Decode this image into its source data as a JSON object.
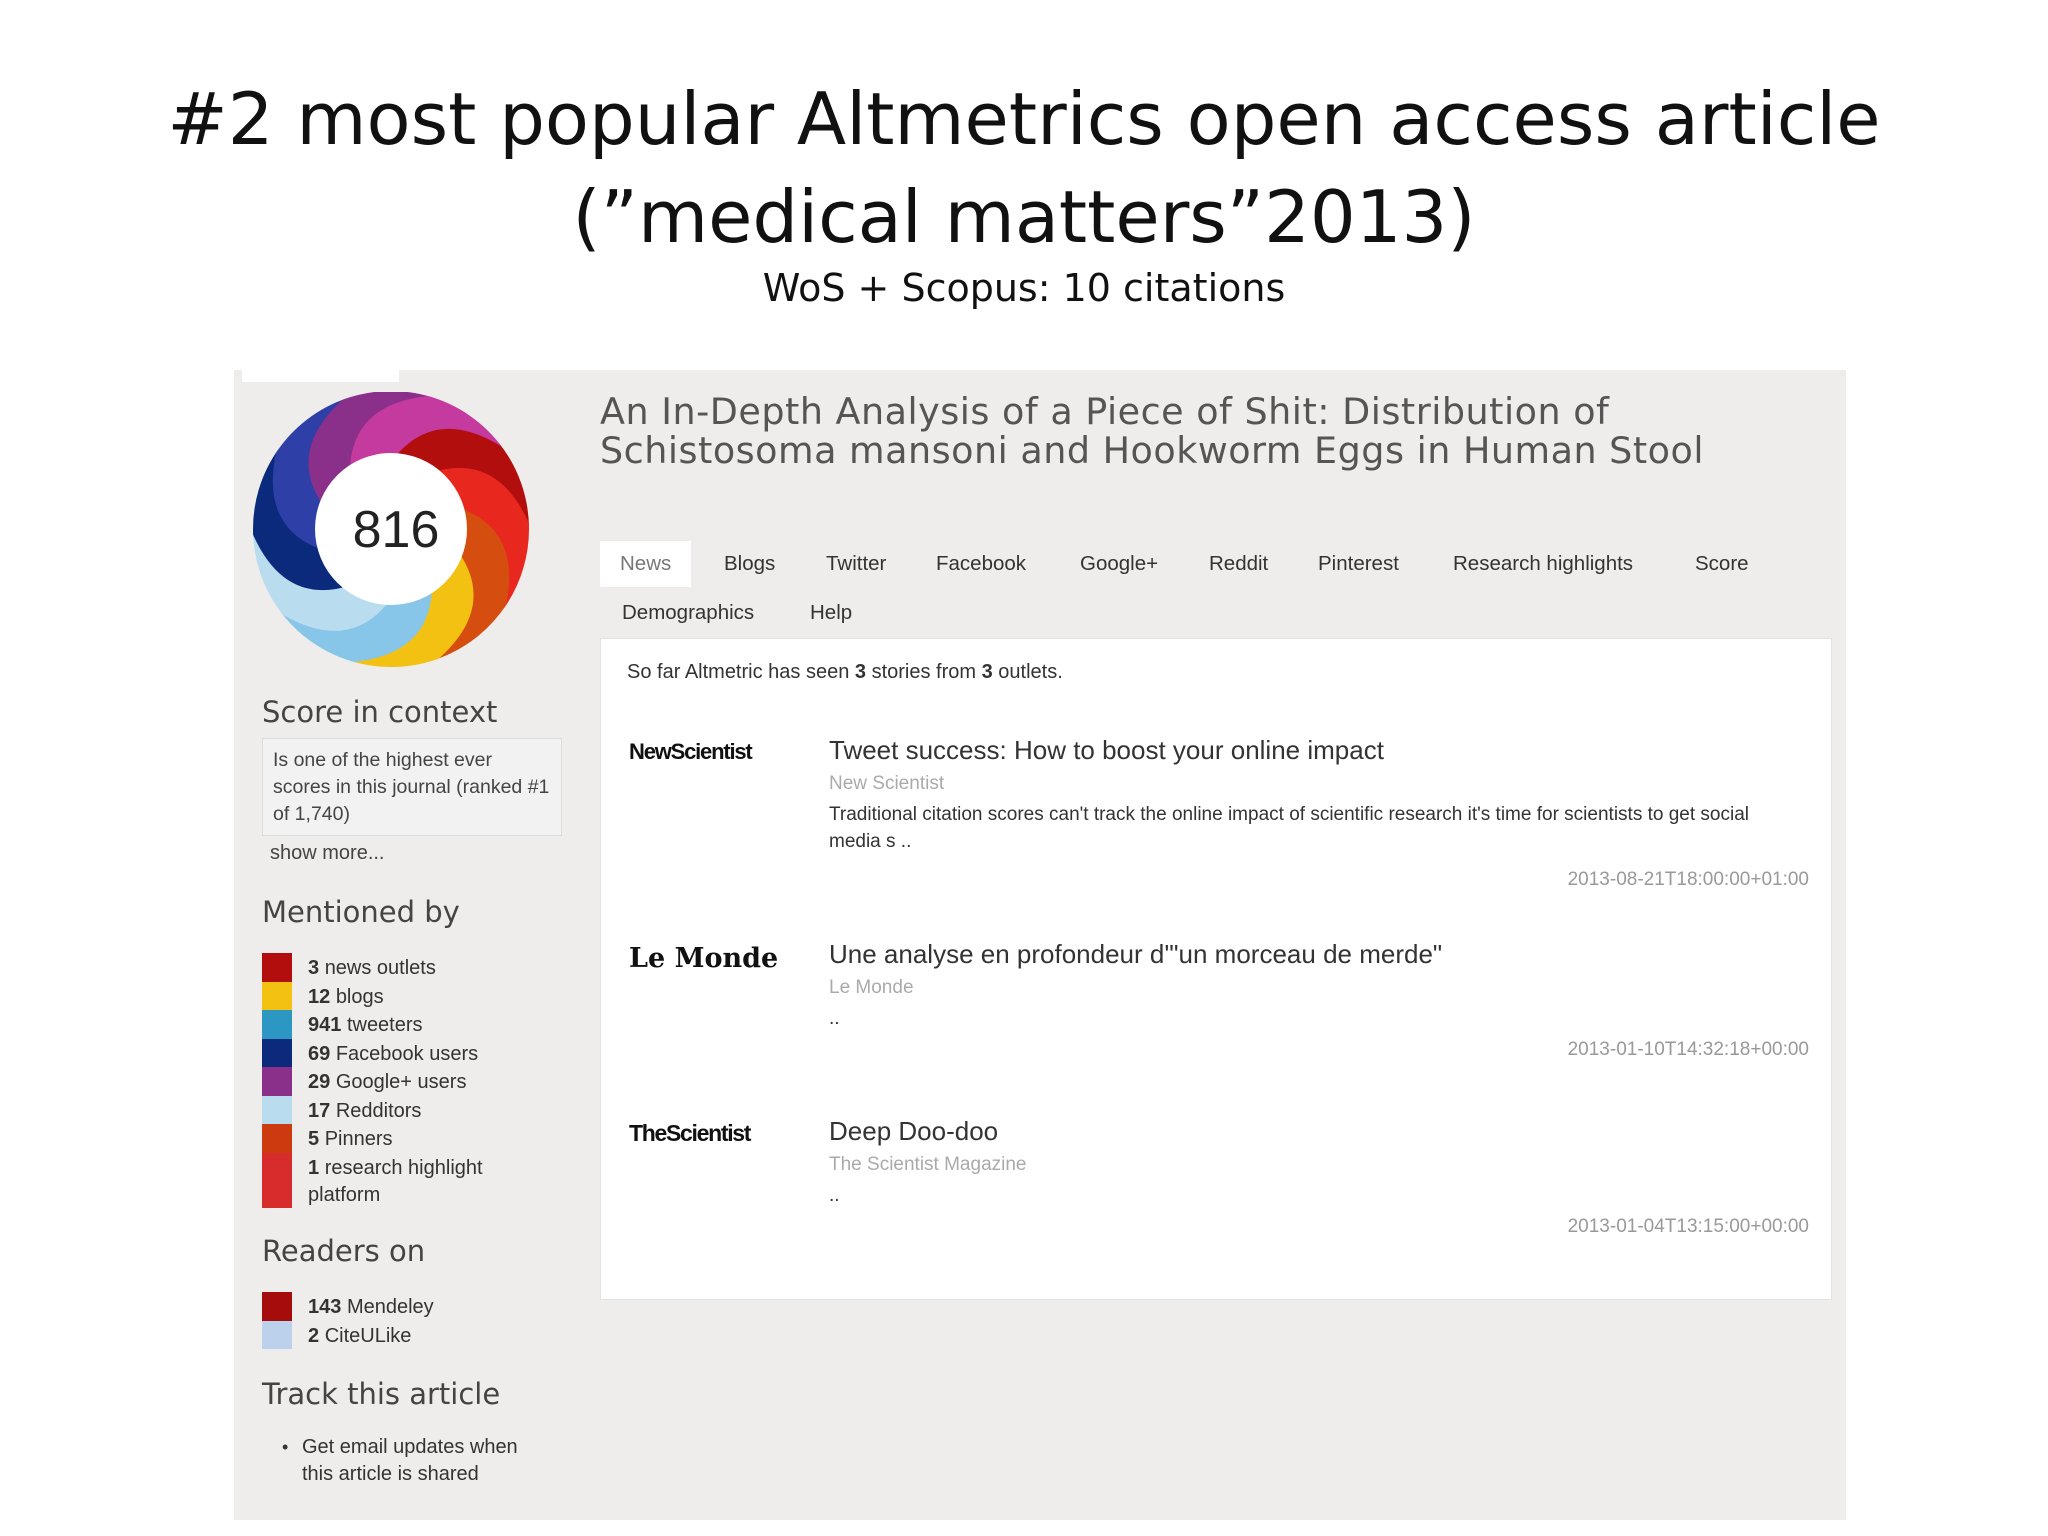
{
  "slide": {
    "title_line1": "#2 most popular Altmetrics open access article",
    "title_line2": "(”medical matters”2013)",
    "subtitle": "WoS + Scopus: 10 citations"
  },
  "score": {
    "value": "816"
  },
  "article": {
    "title": "An In-Depth Analysis of a Piece of Shit: Distribution of Schistosoma mansoni and Hookworm Eggs in Human Stool"
  },
  "tabs": [
    "News",
    "Blogs",
    "Twitter",
    "Facebook",
    "Google+",
    "Reddit",
    "Pinterest",
    "Research highlights",
    "Score",
    "Demographics",
    "Help"
  ],
  "score_context": {
    "heading": "Score in context",
    "text": "Is one of the highest ever scores in this journal (ranked #1 of 1,740)",
    "show_more": "show more..."
  },
  "mentioned_by": {
    "heading": "Mentioned by",
    "items": [
      {
        "count": "3",
        "label": "news outlets",
        "color": "#b30e0e"
      },
      {
        "count": "12",
        "label": "blogs",
        "color": "#f2c112"
      },
      {
        "count": "941",
        "label": "tweeters",
        "color": "#2d97c4"
      },
      {
        "count": "69",
        "label": "Facebook users",
        "color": "#0b2a7c"
      },
      {
        "count": "29",
        "label": "Google+ users",
        "color": "#8a2f8a"
      },
      {
        "count": "17",
        "label": "Redditors",
        "color": "#b9dcef"
      },
      {
        "count": "5",
        "label": "Pinners",
        "color": "#cc3b10"
      },
      {
        "count": "1",
        "label": "research highlight platform",
        "color": "#d62c2c"
      }
    ]
  },
  "readers_on": {
    "heading": "Readers on",
    "items": [
      {
        "count": "143",
        "label": "Mendeley",
        "color": "#a50c0c"
      },
      {
        "count": "2",
        "label": "CiteULike",
        "color": "#bcd2ec"
      }
    ]
  },
  "track": {
    "heading": "Track this article",
    "items": [
      "Get email updates when this article is shared"
    ]
  },
  "news": {
    "intro_pre": "So far Altmetric has seen",
    "intro_stories": "3",
    "intro_mid": "stories from",
    "intro_outlets": "3",
    "intro_post": "outlets.",
    "stories": [
      {
        "logo": "NewScientist",
        "headline": "Tweet success: How to boost your online impact",
        "source": "New Scientist",
        "snippet": "Traditional citation scores can't track the online impact of scientific research it's time for scientists to get social media s ..",
        "date": "2013-08-21T18:00:00+01:00"
      },
      {
        "logo": "Le Monde",
        "headline": "Une analyse en profondeur d'\"un morceau de merde\"",
        "source": "Le Monde",
        "snippet": "..",
        "date": "2013-01-10T14:32:18+00:00"
      },
      {
        "logo": "TheScientist",
        "headline": "Deep Doo-doo",
        "source": "The Scientist Magazine",
        "snippet": "..",
        "date": "2013-01-04T13:15:00+00:00"
      }
    ]
  }
}
